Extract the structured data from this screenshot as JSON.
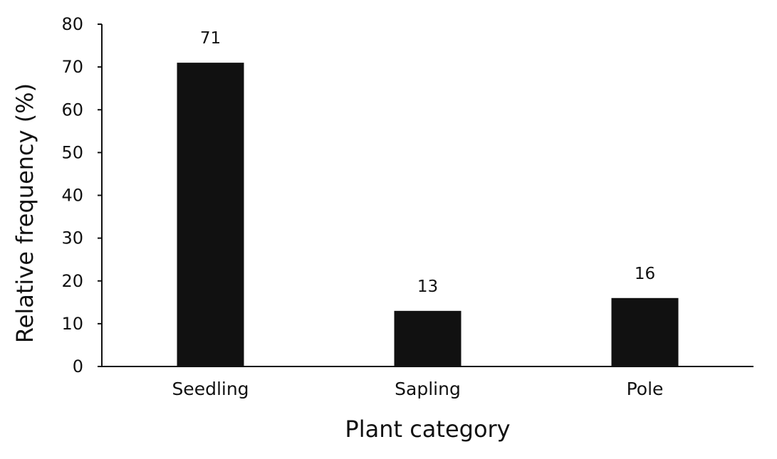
{
  "chart_data": {
    "type": "bar",
    "title": "",
    "xlabel": "Plant category",
    "ylabel": "Relative frequency (%)",
    "categories": [
      "Seedling",
      "Sapling",
      "Pole"
    ],
    "values": [
      71,
      13,
      16
    ],
    "data_labels": [
      "71",
      "13",
      "16"
    ],
    "ylim": [
      0,
      80
    ],
    "yticks": [
      0,
      10,
      20,
      30,
      40,
      50,
      60,
      70,
      80
    ],
    "grid": false,
    "legend": "none",
    "bar_color": "#111111"
  }
}
